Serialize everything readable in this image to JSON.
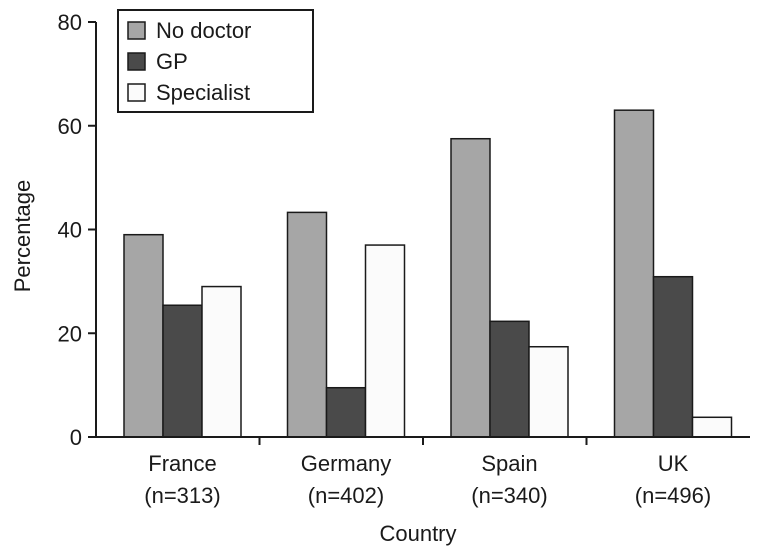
{
  "chart_data": {
    "type": "bar",
    "categories": [
      "France",
      "Germany",
      "Spain",
      "UK"
    ],
    "category_sublabels": [
      "(n=313)",
      "(n=402)",
      "(n=340)",
      "(n=496)"
    ],
    "series": [
      {
        "name": "No doctor",
        "values": [
          39,
          43.3,
          57.5,
          63
        ],
        "color": "#a6a6a6"
      },
      {
        "name": "GP",
        "values": [
          25.4,
          9.5,
          22.3,
          30.9
        ],
        "color": "#4a4a4a"
      },
      {
        "name": "Specialist",
        "values": [
          29,
          37,
          17.4,
          3.8
        ],
        "color": "#fbfbfb"
      }
    ],
    "xlabel": "Country",
    "ylabel": "Percentage",
    "ylim": [
      0,
      80
    ],
    "yticks": [
      0,
      20,
      40,
      60,
      80
    ],
    "legend_position": "top-left",
    "grid": false
  }
}
